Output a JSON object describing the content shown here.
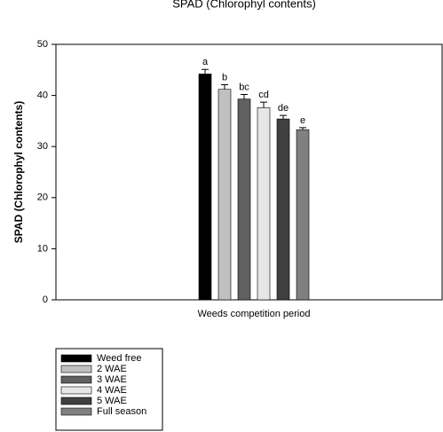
{
  "chart_data": {
    "type": "bar",
    "title": "SPAD (Chlorophyl contents)",
    "y_label": "SPAD (Chlorophyl contents)",
    "x_label": "Weeds competition period",
    "categories": [
      null
    ],
    "series": [
      {
        "name": "Weed free",
        "color": "#000000",
        "values": [
          44.2
        ],
        "errors": [
          0.9
        ],
        "annotation": "a"
      },
      {
        "name": "2 WAE",
        "color": "#c0c0c0",
        "values": [
          41.2
        ],
        "errors": [
          0.9
        ],
        "annotation": "b"
      },
      {
        "name": "3 WAE",
        "color": "#606060",
        "values": [
          39.3
        ],
        "errors": [
          0.9
        ],
        "annotation": "bc"
      },
      {
        "name": "4 WAE",
        "color": "#e6e6e6",
        "values": [
          37.6
        ],
        "errors": [
          1.1
        ],
        "annotation": "cd"
      },
      {
        "name": "5 WAE",
        "color": "#404040",
        "values": [
          35.4
        ],
        "errors": [
          0.7
        ],
        "annotation": "de"
      },
      {
        "name": "Full season",
        "color": "#808080",
        "values": [
          33.3
        ],
        "errors": [
          0.4
        ],
        "annotation": "e"
      }
    ],
    "ylim": [
      0,
      50
    ],
    "yticks": [
      0,
      10,
      20,
      30,
      40,
      50
    ],
    "legend": "bottom-left"
  }
}
